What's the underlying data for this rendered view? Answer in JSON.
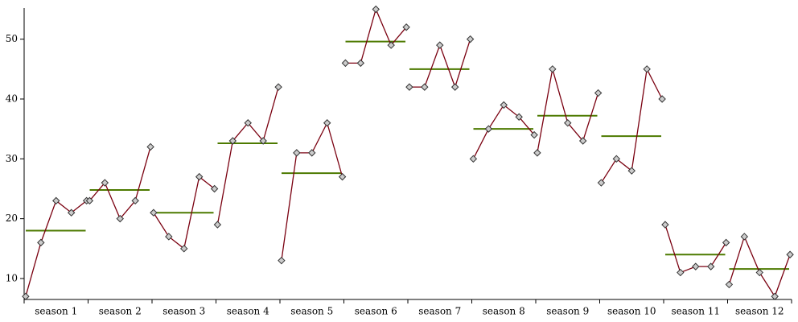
{
  "chart_data": {
    "type": "seasonal-subseries",
    "categories": [
      "season 1",
      "season 2",
      "season 3",
      "season 4",
      "season 5",
      "season 6",
      "season 7",
      "season 8",
      "season 9",
      "season 10",
      "season 11",
      "season 12"
    ],
    "values": [
      [
        7,
        16,
        23,
        21,
        23
      ],
      [
        23,
        26,
        20,
        23,
        32
      ],
      [
        21,
        17,
        15,
        27,
        25
      ],
      [
        19,
        33,
        36,
        33,
        42
      ],
      [
        13,
        31,
        31,
        36,
        27
      ],
      [
        46,
        46,
        55,
        49,
        52
      ],
      [
        42,
        42,
        49,
        42,
        50
      ],
      [
        30,
        35,
        39,
        37,
        34
      ],
      [
        31,
        45,
        36,
        33,
        41
      ],
      [
        26,
        30,
        28,
        45,
        40
      ],
      [
        19,
        11,
        12,
        12,
        16
      ],
      [
        9,
        17,
        11,
        7,
        14
      ]
    ],
    "color": "#7a0010",
    "mean_color": "#4d7a00",
    "ylim": [
      6.5,
      55.2
    ],
    "yticks": [
      10,
      20,
      30,
      40,
      50
    ]
  }
}
